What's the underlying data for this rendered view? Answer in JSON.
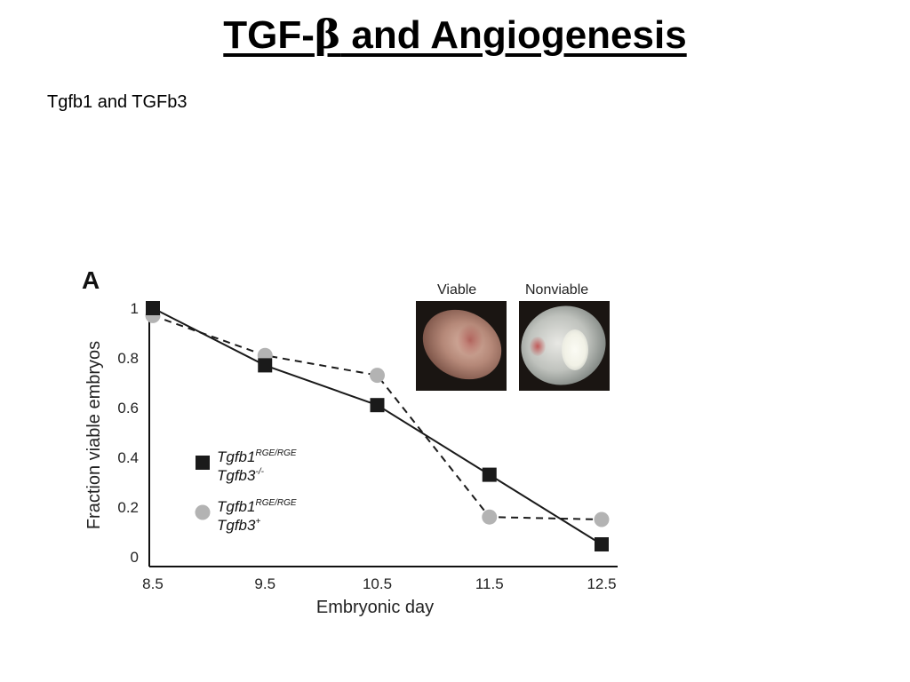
{
  "slide": {
    "title_prefix": "TGF-",
    "title_symbol": "β",
    "title_suffix": " and Angiogenesis",
    "subtitle": "Tgfb1 and TGFb3"
  },
  "figure": {
    "panel_label": "A",
    "photo_labels": {
      "viable": "Viable",
      "nonviable": "Nonviable"
    }
  },
  "chart_data": {
    "type": "line",
    "x": [
      8.5,
      9.5,
      10.5,
      11.5,
      12.5
    ],
    "xtick_labels": [
      "8.5",
      "9.5",
      "10.5",
      "11.5",
      "12.5"
    ],
    "ytick_values": [
      0,
      0.2,
      0.4,
      0.6,
      0.8,
      1
    ],
    "ytick_labels": [
      "0",
      "0.2",
      "0.4",
      "0.6",
      "0.8",
      "1"
    ],
    "xlabel": "Embryonic day",
    "ylabel": "Fraction viable embryos",
    "xlim": [
      8.5,
      12.5
    ],
    "ylim": [
      0,
      1.0
    ],
    "grid": false,
    "legend_placement": "lower-left",
    "series": [
      {
        "gene1": "Tgfb1",
        "gene1_sup": "RGE/RGE",
        "gene2": "Tgfb3",
        "gene2_sup": "-/-",
        "values": [
          1.0,
          0.77,
          0.61,
          0.33,
          0.05
        ],
        "marker": "square",
        "line_style": "solid",
        "color": "#1a1a1a"
      },
      {
        "gene1": "Tgfb1",
        "gene1_sup": "RGE/RGE",
        "gene2": "Tgfb3",
        "gene2_sup": "+",
        "values": [
          0.97,
          0.81,
          0.73,
          0.16,
          0.15
        ],
        "marker": "circle",
        "line_style": "dashed",
        "color": "#b3b3b3"
      }
    ]
  }
}
